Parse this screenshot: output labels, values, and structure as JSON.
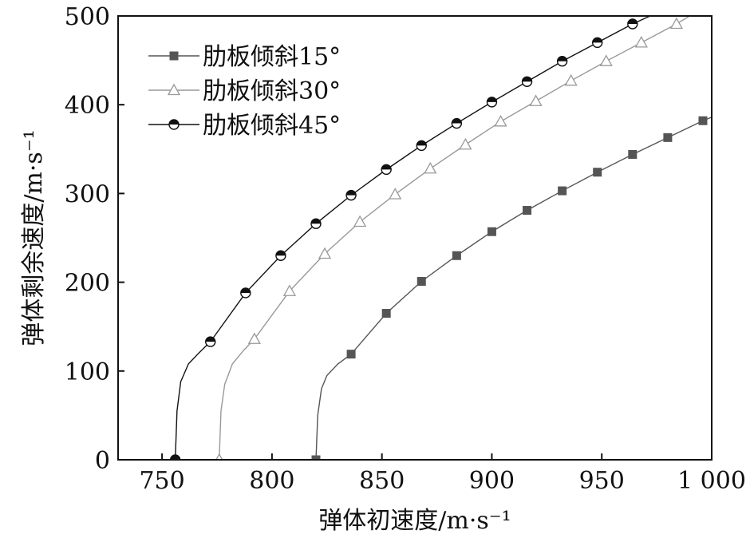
{
  "chart_data": {
    "type": "line",
    "xlabel": "弹体初速度/m·s⁻¹",
    "ylabel": "弹体剩余速度/m·s⁻¹",
    "xlim": [
      730,
      1000
    ],
    "ylim": [
      0,
      500
    ],
    "xticks": [
      750,
      800,
      850,
      900,
      950,
      1000
    ],
    "xtick_labels": [
      "750",
      "800",
      "850",
      "900",
      "950",
      "1 000"
    ],
    "yticks": [
      0,
      100,
      200,
      300,
      400,
      500
    ],
    "ytick_labels": [
      "0",
      "100",
      "200",
      "300",
      "400",
      "500"
    ],
    "grid": false,
    "legend_position": "top-left",
    "series": [
      {
        "name": "肋板倾斜15°",
        "marker": "filled-square",
        "color": "#555555",
        "points": [
          [
            820,
            0
          ],
          [
            836,
            119
          ],
          [
            852,
            165
          ],
          [
            868,
            201
          ],
          [
            884,
            230
          ],
          [
            900,
            257
          ],
          [
            916,
            281
          ],
          [
            932,
            303
          ],
          [
            948,
            324
          ],
          [
            964,
            344
          ],
          [
            980,
            363
          ],
          [
            996,
            382
          ]
        ],
        "curve": [
          [
            820,
            0
          ],
          [
            820.8,
            50
          ],
          [
            822.5,
            80
          ],
          [
            825,
            95
          ],
          [
            830,
            108
          ],
          [
            836,
            119
          ],
          [
            852,
            165
          ],
          [
            868,
            201
          ],
          [
            884,
            230
          ],
          [
            900,
            257
          ],
          [
            916,
            281
          ],
          [
            932,
            303
          ],
          [
            948,
            324
          ],
          [
            964,
            344
          ],
          [
            980,
            363
          ],
          [
            996,
            382
          ],
          [
            1000,
            386
          ]
        ]
      },
      {
        "name": "肋板倾斜30°",
        "marker": "open-triangle",
        "color": "#999999",
        "points": [
          [
            776,
            0
          ],
          [
            792,
            136
          ],
          [
            808,
            190
          ],
          [
            824,
            232
          ],
          [
            840,
            268
          ],
          [
            856,
            299
          ],
          [
            872,
            328
          ],
          [
            888,
            355
          ],
          [
            904,
            381
          ],
          [
            920,
            404
          ],
          [
            936,
            427
          ],
          [
            952,
            449
          ],
          [
            968,
            470
          ],
          [
            984,
            491
          ]
        ],
        "curve": [
          [
            776,
            0
          ],
          [
            776.8,
            55
          ],
          [
            778.5,
            85
          ],
          [
            782,
            108
          ],
          [
            787,
            123
          ],
          [
            792,
            136
          ],
          [
            808,
            190
          ],
          [
            824,
            232
          ],
          [
            840,
            268
          ],
          [
            856,
            299
          ],
          [
            872,
            328
          ],
          [
            888,
            355
          ],
          [
            904,
            381
          ],
          [
            920,
            404
          ],
          [
            936,
            427
          ],
          [
            952,
            449
          ],
          [
            968,
            470
          ],
          [
            984,
            491
          ],
          [
            990,
            500
          ]
        ]
      },
      {
        "name": "肋板倾斜45°",
        "marker": "half-filled-circle",
        "color": "#111111",
        "points": [
          [
            756,
            0
          ],
          [
            772,
            133
          ],
          [
            788,
            188
          ],
          [
            804,
            230
          ],
          [
            820,
            266
          ],
          [
            836,
            298
          ],
          [
            852,
            327
          ],
          [
            868,
            354
          ],
          [
            884,
            379
          ],
          [
            900,
            403
          ],
          [
            916,
            426
          ],
          [
            932,
            449
          ],
          [
            948,
            470
          ],
          [
            964,
            491
          ]
        ],
        "curve": [
          [
            756,
            0
          ],
          [
            756.8,
            55
          ],
          [
            758.5,
            88
          ],
          [
            762,
            108
          ],
          [
            767,
            121
          ],
          [
            772,
            133
          ],
          [
            788,
            188
          ],
          [
            804,
            230
          ],
          [
            820,
            266
          ],
          [
            836,
            298
          ],
          [
            852,
            327
          ],
          [
            868,
            354
          ],
          [
            884,
            379
          ],
          [
            900,
            403
          ],
          [
            916,
            426
          ],
          [
            932,
            449
          ],
          [
            948,
            470
          ],
          [
            964,
            491
          ],
          [
            972,
            500
          ]
        ]
      }
    ]
  }
}
